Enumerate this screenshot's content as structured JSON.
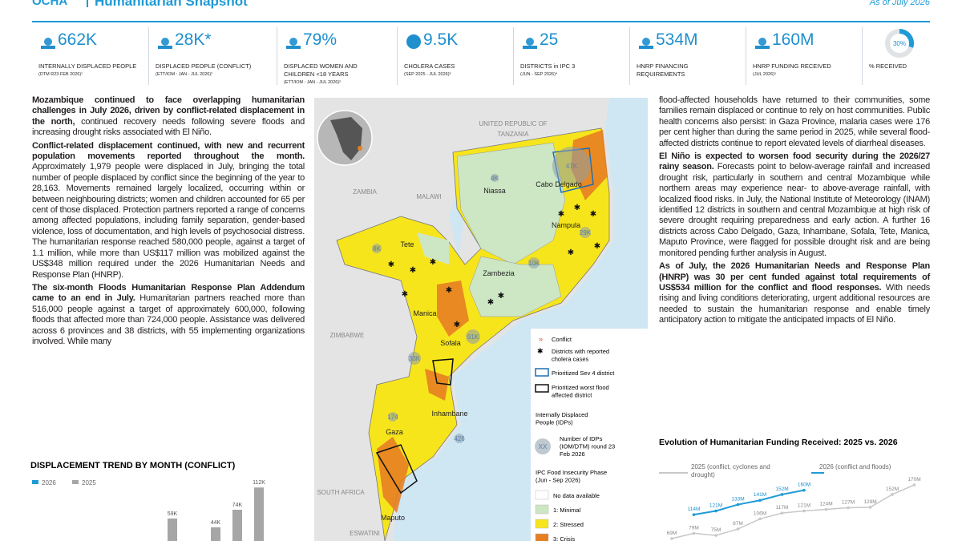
{
  "header": {
    "logo": "OCHA",
    "title": "Humanitarian Snapshot",
    "date": "As of July 2026"
  },
  "kpis": [
    {
      "value": "662K",
      "label": "INTERNALLY DISPLACED PEOPLE",
      "source": "(DTM R23 FEB 2026)¹"
    },
    {
      "value": "28K*",
      "label": "DISPLACED PEOPLE (CONFLICT)",
      "source": "(ETT/IOM : JAN - JUL 2026)²"
    },
    {
      "value": "79%",
      "label": "DISPLACED WOMEN AND CHILDREN <18 YEARS",
      "source": "(ETT/IOM : JAN - JUL 2026)²"
    },
    {
      "value": "9.5K",
      "label": "CHOLERA CASES",
      "source": "(SEP 2025 - JUL 2026)³"
    },
    {
      "value": "25",
      "label": "DISTRICTS in IPC 3",
      "source": "(JUN - SEP 2026)⁴"
    },
    {
      "value": "534M",
      "label": "HNRP FINANCING REQUIREMENTS"
    },
    {
      "value": "160M",
      "label": "HNRP FUNDING RECEIVED",
      "source": "(JUL 2026)⁵"
    }
  ],
  "received": {
    "value": 30,
    "label": "30%",
    "caption": "% RECEIVED"
  },
  "left_text": [
    {
      "bold": "Mozambique continued to face overlapping humanitarian challenges in July 2026, driven by conflict-related displacement in the north,",
      "text": " continued recovery needs following severe floods and increasing drought risks associated with El Niño."
    },
    {
      "bold": "Conflict-related displacement continued, with new and recurrent population movements reported throughout the month.",
      "text": " Approximately 1,979 people were displaced in July, bringing the total number of people displaced by conflict since the beginning of the year to 28,163. Movements remained largely localized, occurring within or between neighbouring districts; women and children accounted for 65 per cent of those displaced. Protection partners reported a range of concerns among affected populations, including family separation, gender-based violence, loss of documentation, and high levels of psychosocial distress. The humanitarian response reached 580,000 people, against a target of 1.1 million, while more than US$117 million was mobilized against the US$348 million required under the 2026 Humanitarian Needs and Response Plan (HNRP)."
    },
    {
      "bold": "The six-month Floods Humanitarian Response Plan Addendum came to an end in July.",
      "text": " Humanitarian partners reached more than 516,000 people against a target of approximately 600,000, following floods that affected more than 724,000 people. Assistance was delivered across 6 provinces and 38 districts, with 55 implementing organizations involved. While many"
    }
  ],
  "right_text": [
    {
      "text": "flood-affected households have returned to their communities, some families remain displaced or continue to rely on host communities. Public health concerns also persist: in Gaza Province, malaria cases were 176 per cent higher than during the same period in 2025, while several flood-affected districts continue to report elevated levels of diarrheal diseases."
    },
    {
      "bold": "El Niño is expected to worsen food security during the 2026/27 rainy season.",
      "text": " Forecasts point to below-average rainfall and increased drought risk, particularly in southern and central Mozambique while northern areas may experience near- to above-average rainfall, with localized flood risks. In July, the National Institute of Meteorology (INAM) identified 12 districts in southern and central Mozambique at high risk of severe drought requiring preparedness and early action. A further 16 districts across Cabo Delgado, Gaza, Inhambane, Sofala, Tete, Manica, Maputo Province, were flagged for possible drought risk and are being monitored pending further analysis in August."
    },
    {
      "bold": "As of July, the 2026 Humanitarian Needs and Response Plan (HNRP) was 30 per cent funded against total requirements of US$534 million for the conflict and flood responses.",
      "text": " With needs rising and living conditions deteriorating, urgent additional resources are needed to sustain the humanitarian response and enable timely anticipatory action to mitigate the anticipated impacts of El Niño."
    }
  ],
  "map": {
    "countries": [
      "UNITED REPUBLIC OF",
      "TANZANIA",
      "ZAMBIA",
      "MALAWI",
      "ZIMBABWE",
      "SOUTH AFRICA",
      "ESWATINI"
    ],
    "provinces": [
      "Niassa",
      "Cabo Delgado",
      "Nampula",
      "Zambezia",
      "Tete",
      "Manica",
      "Sofala",
      "Inhambane",
      "Gaza",
      "Maputo"
    ],
    "idps": [
      "8K",
      "4K",
      "47K",
      "29K",
      "10K",
      "91K",
      "33K",
      "174",
      "426"
    ],
    "legend": {
      "conflict": "Conflict",
      "cholera": "Districts with reported cholera cases",
      "sev4": "Prioritized Sev 4 district",
      "flood": "Prioritized worst flood affected district",
      "idp_title": "Internally Displaced People (IDPs)",
      "idp_symbol": "XX",
      "idp_note": "Number of IDPs (IOM/DTM) round 23 Feb 2026",
      "ipc_title": "IPC Food Insecurity Phase (Jun - Sep 2026)",
      "ipc": [
        {
          "label": "No data available",
          "color": "#ffffff"
        },
        {
          "label": "1: Minimal",
          "color": "#cde6c4"
        },
        {
          "label": "2: Stressed",
          "color": "#f7e51c"
        },
        {
          "label": "3: Crisis",
          "color": "#e67e22"
        }
      ]
    }
  },
  "chart_data": [
    {
      "type": "bar",
      "title": "DISPLACEMENT TREND BY MONTH (CONFLICT)",
      "categories": [
        null,
        null,
        null,
        null,
        null
      ],
      "series": [
        {
          "name": "2026",
          "color": "#1f9ad6",
          "values": [
            null,
            null,
            null,
            null,
            null
          ]
        },
        {
          "name": "2025",
          "color": "#a6a6a6",
          "values": [
            59000,
            null,
            44000,
            74000,
            112000
          ],
          "value_labels": [
            "59K",
            null,
            "44K",
            "74K",
            "112K"
          ]
        }
      ]
    },
    {
      "type": "line",
      "title": "Evolution of Humanitarian Funding Received: 2025 vs. 2026",
      "categories": [
        null,
        null,
        null,
        null,
        null,
        null,
        null,
        null,
        null,
        null,
        null,
        null
      ],
      "series": [
        {
          "name": "2025 (conflict, cyclones and drought)",
          "color": "#c8c8c8",
          "values": [
            69000000,
            79000000,
            75000000,
            87000000,
            106000000,
            117000000,
            121000000,
            124000000,
            127000000,
            128000000,
            152000000,
            170000000
          ],
          "value_labels": [
            "69M",
            "79M",
            "75M",
            "87M",
            "106M",
            "117M",
            "121M",
            "124M",
            "127M",
            "128M",
            "152M",
            "170M"
          ]
        },
        {
          "name": "2026 (conflict and floods)",
          "color": "#1f9ad6",
          "values": [
            null,
            114000000,
            121000000,
            133000000,
            141000000,
            152000000,
            160000000,
            null,
            null,
            null,
            null,
            null
          ],
          "value_labels": [
            null,
            "114M",
            "121M",
            "133M",
            "141M",
            "152M",
            "160M",
            null,
            null,
            null,
            null,
            null
          ]
        }
      ]
    }
  ]
}
